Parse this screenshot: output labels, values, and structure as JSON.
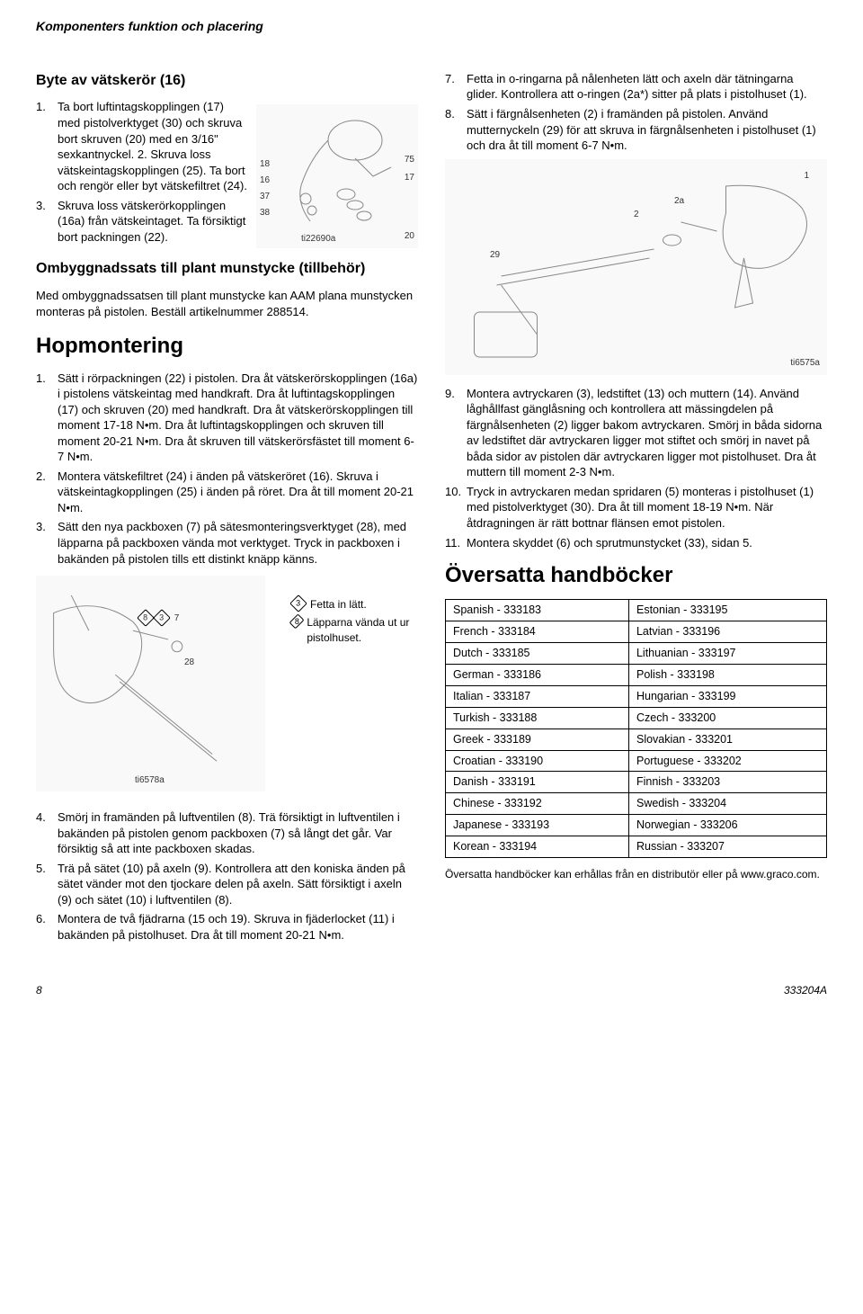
{
  "header": {
    "breadcrumb": "Komponenters funktion och placering"
  },
  "leftCol": {
    "h1": "Byte av vätskerör (16)",
    "list1": [
      "Ta bort luftintagskopplingen (17) med pistolverktyget (30) och skruva bort skruven (20) med en 3/16\" sexkantnyckel. 2. Skruva loss vätskeintagskopplingen (25). Ta bort och rengör eller byt vätskefiltret (24).",
      "Skruva loss vätskerörkopplingen (16a) från vätskeintaget. Ta försiktigt bort packningen (22)."
    ],
    "list1_startNums": [
      "1.",
      "3."
    ],
    "fig1": {
      "labels_left": [
        "18",
        "16",
        "37",
        "38"
      ],
      "labels_right": [
        "75",
        "17",
        "20"
      ],
      "code": "ti22690a"
    },
    "h2": "Ombyggnadssats till plant munstycke (tillbehör)",
    "p2": "Med ombyggnadssatsen till plant munstycke kan AAM plana munstycken monteras på pistolen. Beställ artikelnummer 288514.",
    "h3": "Hopmontering",
    "list2_nums": [
      "1.",
      "2.",
      "3."
    ],
    "list2": [
      "Sätt i rörpackningen (22) i pistolen. Dra åt vätskerörskopplingen (16a) i pistolens vätskeintag med handkraft. Dra åt luftintagskopplingen (17) och skruven (20) med handkraft. Dra åt vätskerörskopplingen till moment 17-18 N•m. Dra åt luftintagskopplingen och skruven till moment 20-21 N•m. Dra åt skruven till vätskerörsfästet till moment 6-7 N•m.",
      "Montera vätskefiltret (24) i änden på vätskeröret (16). Skruva i vätskeintagkopplingen (25) i änden på röret. Dra åt till moment 20-21 N•m.",
      "Sätt den nya packboxen (7) på sätesmonteringsverktyget (28), med läpparna på packboxen vända mot verktyget. Tryck in packboxen i bakänden på pistolen tills ett distinkt knäpp känns."
    ],
    "fig2": {
      "callouts": [
        "8",
        "3",
        "7",
        "28"
      ],
      "annot3": "Fetta in lätt.",
      "annot8": "Läpparna vända ut ur pistolhuset.",
      "code": "ti6578a"
    },
    "list3_nums": [
      "4.",
      "5.",
      "6."
    ],
    "list3": [
      "Smörj in framänden på luftventilen (8). Trä försiktigt in luftventilen i bakänden på pistolen genom packboxen (7) så långt det går. Var försiktig så att inte packboxen skadas.",
      "Trä på sätet (10) på axeln (9). Kontrollera att den koniska änden på sätet vänder mot den tjockare delen på axeln. Sätt försiktigt i axeln (9) och sätet (10) i luftventilen (8).",
      "Montera de två fjädrarna (15 och 19). Skruva in fjäderlocket (11) i bakänden på pistolhuset. Dra åt till moment 20-21 N•m."
    ]
  },
  "rightCol": {
    "list4_nums": [
      "7.",
      "8."
    ],
    "list4": [
      "Fetta in o-ringarna på nålenheten lätt och axeln där tätningarna glider. Kontrollera att o-ringen (2a*) sitter på plats i pistolhuset (1).",
      "Sätt i färgnålsenheten (2) i framänden på pistolen. Använd mutternyckeln (29) för att skruva in färgnålsenheten i pistolhuset (1) och dra åt till moment 6-7 N•m."
    ],
    "fig3": {
      "callouts": [
        "29",
        "2",
        "2a",
        "1"
      ],
      "code": "ti6575a"
    },
    "list5_nums": [
      "9.",
      "10.",
      "11."
    ],
    "list5": [
      "Montera avtryckaren (3), ledstiftet (13) och muttern (14). Använd låghållfast gänglåsning och kontrollera att mässingdelen på färgnålsenheten (2) ligger bakom avtryckaren. Smörj in båda sidorna av ledstiftet där avtryckaren ligger mot stiftet och smörj in navet på båda sidor av pistolen där avtryckaren ligger mot pistolhuset. Dra åt muttern till moment 2-3 N•m.",
      "Tryck in avtryckaren medan spridaren (5) monteras i pistolhuset (1) med pistolverktyget (30). Dra åt till moment 18-19 N•m. När åtdragningen är rätt bottnar flänsen emot pistolen.",
      "Montera skyddet (6) och sprutmunstycket (33), sidan 5."
    ],
    "h4": "Översatta handböcker",
    "table": {
      "rows": [
        [
          "Spanish - 333183",
          "Estonian - 333195"
        ],
        [
          "French - 333184",
          "Latvian - 333196"
        ],
        [
          "Dutch - 333185",
          "Lithuanian - 333197"
        ],
        [
          "German - 333186",
          "Polish - 333198"
        ],
        [
          "Italian - 333187",
          "Hungarian - 333199"
        ],
        [
          "Turkish - 333188",
          "Czech - 333200"
        ],
        [
          "Greek - 333189",
          "Slovakian - 333201"
        ],
        [
          "Croatian - 333190",
          "Portuguese - 333202"
        ],
        [
          "Danish - 333191",
          "Finnish - 333203"
        ],
        [
          "Chinese - 333192",
          "Swedish - 333204"
        ],
        [
          "Japanese - 333193",
          "Norwegian - 333206"
        ],
        [
          "Korean - 333194",
          "Russian - 333207"
        ]
      ]
    },
    "postTable": "Översatta handböcker kan erhållas från en distributör eller på www.graco.com."
  },
  "footer": {
    "pageNum": "8",
    "docNum": "333204A"
  }
}
